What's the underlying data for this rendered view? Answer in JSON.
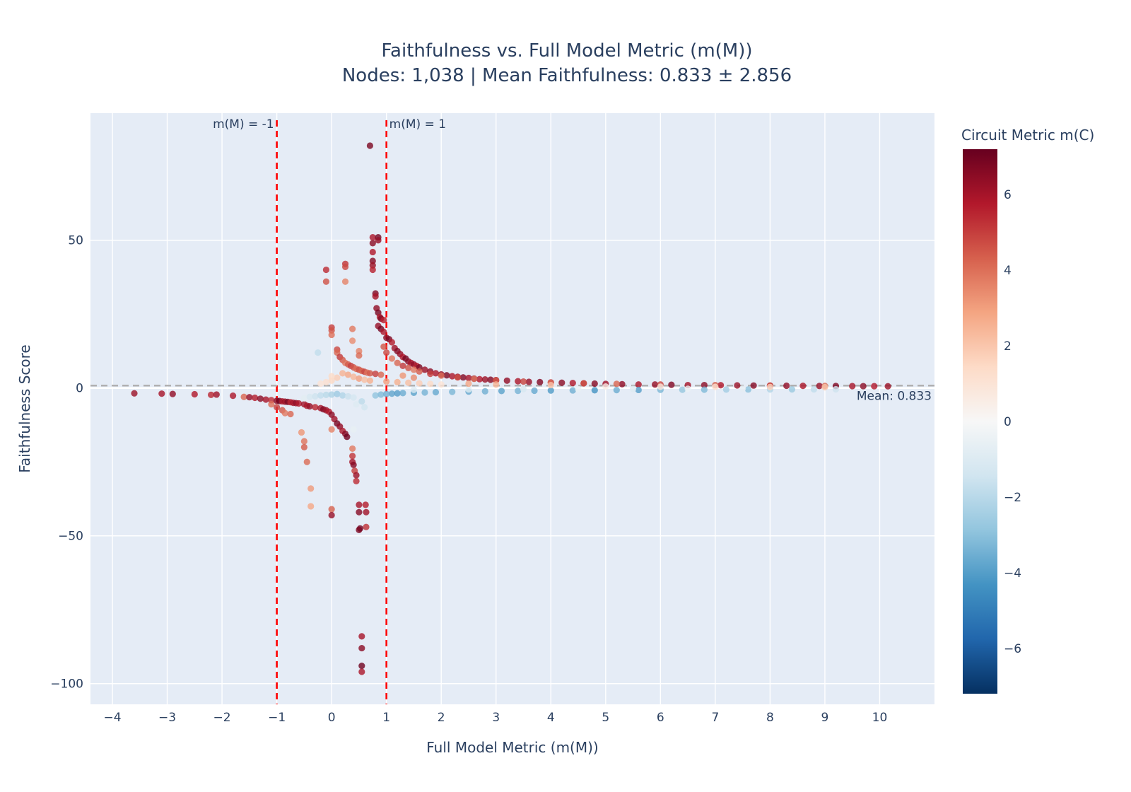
{
  "chart_data": {
    "type": "scatter",
    "title": "Faithfulness vs. Full Model Metric (m(M))",
    "subtitle": "Nodes: 1,038 | Mean Faithfulness: 0.833 ± 2.856",
    "xlabel": "Full Model Metric (m(M))",
    "ylabel": "Faithfulness Score",
    "xlim": [
      -4.4,
      11
    ],
    "ylim": [
      -107,
      93
    ],
    "x_ticks": [
      -4,
      -3,
      -2,
      -1,
      0,
      1,
      2,
      3,
      4,
      5,
      6,
      7,
      8,
      9,
      10
    ],
    "x_tick_labels": [
      "−4",
      "−3",
      "−2",
      "−1",
      "0",
      "1",
      "2",
      "3",
      "4",
      "5",
      "6",
      "7",
      "8",
      "9",
      "10"
    ],
    "y_ticks": [
      -100,
      -50,
      0,
      50
    ],
    "y_tick_labels": [
      "−100",
      "−50",
      "0",
      "50"
    ],
    "grid": true,
    "colorbar": {
      "title": "Circuit Metric m(C)",
      "range": [
        -7.2,
        7.2
      ],
      "ticks": [
        -6,
        -4,
        -2,
        0,
        2,
        4,
        6
      ],
      "tick_labels": [
        "−6",
        "−4",
        "−2",
        "0",
        "2",
        "4",
        "6"
      ],
      "colorscale": "RdBu reversed"
    },
    "reference_lines": [
      {
        "orientation": "vertical",
        "x": -1,
        "label": "m(M) = -1",
        "color": "#ff0000",
        "style": "dashed"
      },
      {
        "orientation": "vertical",
        "x": 1,
        "label": "m(M) = 1",
        "color": "#ff0000",
        "style": "dashed"
      },
      {
        "orientation": "horizontal",
        "y": 0.833,
        "label": "Mean: 0.833",
        "color": "#b0b0b0",
        "style": "dashed"
      }
    ],
    "points": [
      [
        -3.6,
        -1.8,
        6.2
      ],
      [
        -3.1,
        -1.9,
        6.0
      ],
      [
        -2.9,
        -2.0,
        6.4
      ],
      [
        -2.5,
        -2.1,
        5.8
      ],
      [
        -2.2,
        -2.3,
        5.5
      ],
      [
        -2.1,
        -2.2,
        6.1
      ],
      [
        -1.8,
        -2.6,
        5.9
      ],
      [
        -1.6,
        -3.0,
        4.2
      ],
      [
        -1.5,
        -3.1,
        6.3
      ],
      [
        -1.4,
        -3.3,
        5.7
      ],
      [
        -1.3,
        -3.6,
        6.5
      ],
      [
        -1.2,
        -3.9,
        6.0
      ],
      [
        -1.1,
        -4.1,
        5.4
      ],
      [
        -1.0,
        -4.3,
        6.6
      ],
      [
        -0.95,
        -4.4,
        7.0
      ],
      [
        -0.9,
        -4.5,
        5.9
      ],
      [
        -0.85,
        -4.6,
        6.2
      ],
      [
        -0.8,
        -4.7,
        6.8
      ],
      [
        -0.75,
        -4.8,
        5.6
      ],
      [
        -0.7,
        -5.0,
        6.0
      ],
      [
        -0.65,
        -5.1,
        6.4
      ],
      [
        -0.6,
        -5.2,
        5.8
      ],
      [
        -1.1,
        -5.5,
        4.0
      ],
      [
        -1.0,
        -6.5,
        5.0
      ],
      [
        -0.9,
        -7.5,
        4.5
      ],
      [
        -0.85,
        -8.5,
        3.8
      ],
      [
        -0.75,
        -8.8,
        4.2
      ],
      [
        -0.5,
        -5.5,
        6.1
      ],
      [
        -0.45,
        -6.0,
        5.9
      ],
      [
        -0.4,
        -6.2,
        6.3
      ],
      [
        -0.3,
        -6.5,
        5.5
      ],
      [
        -0.2,
        -6.8,
        6.0
      ],
      [
        -0.15,
        -7.2,
        6.7
      ],
      [
        -0.1,
        -7.5,
        6.2
      ],
      [
        -0.05,
        -8.0,
        5.8
      ],
      [
        0.0,
        -9.0,
        6.5
      ],
      [
        0.05,
        -10.5,
        6.1
      ],
      [
        0.1,
        -12.0,
        6.9
      ],
      [
        0.15,
        -13.0,
        6.4
      ],
      [
        0.2,
        -14.5,
        5.9
      ],
      [
        0.25,
        -15.5,
        6.6
      ],
      [
        0.28,
        -16.5,
        7.0
      ],
      [
        -0.55,
        -15.0,
        3.2
      ],
      [
        -0.5,
        -18.0,
        3.9
      ],
      [
        -0.5,
        -20.0,
        4.4
      ],
      [
        -0.45,
        -25.0,
        4.1
      ],
      [
        -0.38,
        -34.0,
        3.1
      ],
      [
        -0.38,
        -40.0,
        2.8
      ],
      [
        0.0,
        -14.0,
        3.6
      ],
      [
        0.0,
        -41.0,
        4.3
      ],
      [
        0.0,
        -43.0,
        6.3
      ],
      [
        0.38,
        -20.5,
        3.8
      ],
      [
        0.38,
        -23.0,
        5.2
      ],
      [
        0.38,
        -25.0,
        6.0
      ],
      [
        0.4,
        -26.0,
        6.6
      ],
      [
        0.42,
        -28.0,
        5.0
      ],
      [
        0.45,
        -29.5,
        6.2
      ],
      [
        0.45,
        -31.5,
        5.4
      ],
      [
        0.5,
        -39.5,
        6.0
      ],
      [
        0.5,
        -42.0,
        6.6
      ],
      [
        0.52,
        -47.5,
        7.0
      ],
      [
        0.5,
        -48.0,
        6.8
      ],
      [
        0.62,
        -39.5,
        5.7
      ],
      [
        0.63,
        -42.0,
        6.1
      ],
      [
        0.63,
        -47.0,
        5.3
      ],
      [
        0.55,
        -84.0,
        6.0
      ],
      [
        0.55,
        -88.0,
        6.5
      ],
      [
        0.55,
        -94.0,
        7.0
      ],
      [
        0.55,
        -96.0,
        5.9
      ],
      [
        0.7,
        82.0,
        6.8
      ],
      [
        0.75,
        51.0,
        5.9
      ],
      [
        0.85,
        51.0,
        6.9
      ],
      [
        0.85,
        50.0,
        6.3
      ],
      [
        0.75,
        49.0,
        6.5
      ],
      [
        0.75,
        46.0,
        5.8
      ],
      [
        0.75,
        43.0,
        6.6
      ],
      [
        0.75,
        41.5,
        6.2
      ],
      [
        0.75,
        40.0,
        5.6
      ],
      [
        0.8,
        32.0,
        6.7
      ],
      [
        0.8,
        31.0,
        6.0
      ],
      [
        0.82,
        27.0,
        6.4
      ],
      [
        0.85,
        25.5,
        6.9
      ],
      [
        0.88,
        24.0,
        5.8
      ],
      [
        0.9,
        23.5,
        6.7
      ],
      [
        0.95,
        23.0,
        5.6
      ],
      [
        0.85,
        21.0,
        6.3
      ],
      [
        0.9,
        20.0,
        6.9
      ],
      [
        0.95,
        19.0,
        5.9
      ],
      [
        1.0,
        17.0,
        6.5
      ],
      [
        1.05,
        16.5,
        6.8
      ],
      [
        1.1,
        15.5,
        5.7
      ],
      [
        1.15,
        13.5,
        6.1
      ],
      [
        1.2,
        12.5,
        6.7
      ],
      [
        1.25,
        11.5,
        6.3
      ],
      [
        1.3,
        10.5,
        5.8
      ],
      [
        1.35,
        10.0,
        6.9
      ],
      [
        1.4,
        9.0,
        6.5
      ],
      [
        1.45,
        8.5,
        6.0
      ],
      [
        1.5,
        8.0,
        6.4
      ],
      [
        1.55,
        7.5,
        5.7
      ],
      [
        1.6,
        7.0,
        6.8
      ],
      [
        1.7,
        6.2,
        6.2
      ],
      [
        1.8,
        5.6,
        6.5
      ],
      [
        1.9,
        5.0,
        5.9
      ],
      [
        2.0,
        4.6,
        6.4
      ],
      [
        2.1,
        4.3,
        6.8
      ],
      [
        2.2,
        4.0,
        5.9
      ],
      [
        2.3,
        3.8,
        6.3
      ],
      [
        2.4,
        3.6,
        6.7
      ],
      [
        2.5,
        3.4,
        6.0
      ],
      [
        2.6,
        3.2,
        6.5
      ],
      [
        2.7,
        3.0,
        5.8
      ],
      [
        2.8,
        2.9,
        6.2
      ],
      [
        2.9,
        2.8,
        6.6
      ],
      [
        3.0,
        2.7,
        6.1
      ],
      [
        3.2,
        2.5,
        6.4
      ],
      [
        3.4,
        2.3,
        5.9
      ],
      [
        3.6,
        2.1,
        6.3
      ],
      [
        3.8,
        2.0,
        6.7
      ],
      [
        4.0,
        1.9,
        6.0
      ],
      [
        4.2,
        1.8,
        6.5
      ],
      [
        4.4,
        1.7,
        5.8
      ],
      [
        4.6,
        1.6,
        6.2
      ],
      [
        4.8,
        1.5,
        6.6
      ],
      [
        5.0,
        1.4,
        6.1
      ],
      [
        5.3,
        1.3,
        6.4
      ],
      [
        5.6,
        1.2,
        5.9
      ],
      [
        5.9,
        1.2,
        6.3
      ],
      [
        6.2,
        1.1,
        6.7
      ],
      [
        6.5,
        1.0,
        6.0
      ],
      [
        6.8,
        1.0,
        6.5
      ],
      [
        7.1,
        0.95,
        5.8
      ],
      [
        7.4,
        0.9,
        6.2
      ],
      [
        7.7,
        0.85,
        6.6
      ],
      [
        8.0,
        0.8,
        6.1
      ],
      [
        8.3,
        0.78,
        6.4
      ],
      [
        8.6,
        0.75,
        5.9
      ],
      [
        8.9,
        0.7,
        6.3
      ],
      [
        9.2,
        0.68,
        6.7
      ],
      [
        9.5,
        0.66,
        6.0
      ],
      [
        9.7,
        0.64,
        6.5
      ],
      [
        9.9,
        0.62,
        5.8
      ],
      [
        10.15,
        0.6,
        6.2
      ],
      [
        0.95,
        14.0,
        4.5
      ],
      [
        1.0,
        12.0,
        4.8
      ],
      [
        1.1,
        10.0,
        3.9
      ],
      [
        1.2,
        8.5,
        4.2
      ],
      [
        1.3,
        7.5,
        5.1
      ],
      [
        1.4,
        6.8,
        4.6
      ],
      [
        1.5,
        6.2,
        3.8
      ],
      [
        1.6,
        5.6,
        4.4
      ],
      [
        1.8,
        4.8,
        5.0
      ],
      [
        2.0,
        4.2,
        4.1
      ],
      [
        2.3,
        3.6,
        4.7
      ],
      [
        2.6,
        3.1,
        3.9
      ],
      [
        3.0,
        2.6,
        4.5
      ],
      [
        3.5,
        2.2,
        4.9
      ],
      [
        4.0,
        1.8,
        4.0
      ],
      [
        4.6,
        1.6,
        4.6
      ],
      [
        5.2,
        1.4,
        4.2
      ],
      [
        6.0,
        1.2,
        4.8
      ],
      [
        7.0,
        1.0,
        4.3
      ],
      [
        8.0,
        0.85,
        4.7
      ],
      [
        9.0,
        0.72,
        4.1
      ],
      [
        0.0,
        20.5,
        5.0
      ],
      [
        0.0,
        19.5,
        4.6
      ],
      [
        0.0,
        18.0,
        4.0
      ],
      [
        0.1,
        13.0,
        4.8
      ],
      [
        0.1,
        12.0,
        4.2
      ],
      [
        0.15,
        10.5,
        5.1
      ],
      [
        0.2,
        9.5,
        4.5
      ],
      [
        0.25,
        8.5,
        3.9
      ],
      [
        0.3,
        8.0,
        4.4
      ],
      [
        0.35,
        7.5,
        5.0
      ],
      [
        0.4,
        7.0,
        4.6
      ],
      [
        0.45,
        6.5,
        4.1
      ],
      [
        0.5,
        6.2,
        4.7
      ],
      [
        0.55,
        5.8,
        4.3
      ],
      [
        0.6,
        5.5,
        4.9
      ],
      [
        0.65,
        5.2,
        4.0
      ],
      [
        0.7,
        5.0,
        4.5
      ],
      [
        0.8,
        4.8,
        5.0
      ],
      [
        0.9,
        4.5,
        4.2
      ],
      [
        0.38,
        20.0,
        3.8
      ],
      [
        0.38,
        16.0,
        3.4
      ],
      [
        0.5,
        12.5,
        3.6
      ],
      [
        0.5,
        11.0,
        4.1
      ],
      [
        0.25,
        42.0,
        5.2
      ],
      [
        0.25,
        41.0,
        4.8
      ],
      [
        0.25,
        36.0,
        3.6
      ],
      [
        -0.1,
        40.0,
        5.4
      ],
      [
        -0.1,
        36.0,
        4.6
      ],
      [
        0.3,
        4.5,
        2.8
      ],
      [
        0.4,
        3.8,
        2.4
      ],
      [
        0.5,
        3.2,
        3.0
      ],
      [
        0.6,
        2.8,
        2.2
      ],
      [
        0.7,
        2.5,
        2.6
      ],
      [
        0.2,
        5.0,
        2.5
      ],
      [
        0.1,
        3.5,
        1.8
      ],
      [
        0.0,
        2.5,
        1.5
      ],
      [
        -0.1,
        2.0,
        1.2
      ],
      [
        -0.2,
        1.5,
        1.0
      ],
      [
        -0.25,
        12.0,
        -1.8
      ],
      [
        0.0,
        4.0,
        1.4
      ],
      [
        1.0,
        2.2,
        3.0
      ],
      [
        1.2,
        2.0,
        2.6
      ],
      [
        1.4,
        1.8,
        2.2
      ],
      [
        1.6,
        1.6,
        1.8
      ],
      [
        1.8,
        1.4,
        1.4
      ],
      [
        2.0,
        1.2,
        1.0
      ],
      [
        -0.5,
        -3.5,
        -0.8
      ],
      [
        -0.4,
        -3.0,
        -1.2
      ],
      [
        -0.3,
        -2.8,
        -1.5
      ],
      [
        -0.2,
        -2.5,
        -1.8
      ],
      [
        -0.1,
        -2.3,
        -2.0
      ],
      [
        0.0,
        -2.2,
        -2.3
      ],
      [
        0.1,
        -2.0,
        -2.6
      ],
      [
        0.2,
        -2.5,
        -2.2
      ],
      [
        0.3,
        -2.8,
        -1.6
      ],
      [
        0.4,
        -3.2,
        -1.3
      ],
      [
        0.45,
        -5.5,
        -1.0
      ],
      [
        0.6,
        -6.5,
        -1.4
      ],
      [
        0.55,
        -4.5,
        -1.9
      ],
      [
        0.4,
        -14.0,
        -0.6
      ],
      [
        0.8,
        -2.5,
        -2.9
      ],
      [
        0.9,
        -2.2,
        -3.2
      ],
      [
        1.0,
        -2.0,
        -3.5
      ],
      [
        1.1,
        -1.9,
        -3.8
      ],
      [
        1.2,
        -1.8,
        -4.0
      ],
      [
        1.3,
        -1.7,
        -3.6
      ],
      [
        1.5,
        -1.6,
        -3.9
      ],
      [
        1.7,
        -1.5,
        -3.4
      ],
      [
        1.9,
        -1.4,
        -3.7
      ],
      [
        2.2,
        -1.3,
        -3.3
      ],
      [
        2.5,
        -1.2,
        -3.8
      ],
      [
        2.8,
        -1.1,
        -3.5
      ],
      [
        3.1,
        -1.0,
        -3.9
      ],
      [
        3.4,
        -0.95,
        -3.4
      ],
      [
        3.7,
        -0.9,
        -3.7
      ],
      [
        4.0,
        -0.85,
        -4.1
      ],
      [
        4.4,
        -0.8,
        -3.5
      ],
      [
        4.8,
        -0.75,
        -4.3
      ],
      [
        5.2,
        -0.7,
        -3.6
      ],
      [
        5.6,
        -0.65,
        -4.0
      ],
      [
        6.0,
        -0.6,
        -3.3
      ],
      [
        6.4,
        -0.58,
        -2.8
      ],
      [
        6.8,
        -0.55,
        -3.2
      ],
      [
        7.2,
        -0.52,
        -2.5
      ],
      [
        7.6,
        -0.5,
        -3.0
      ],
      [
        8.0,
        -0.48,
        -2.2
      ],
      [
        8.4,
        -0.46,
        -2.7
      ],
      [
        8.8,
        -0.44,
        -1.8
      ],
      [
        9.2,
        -0.42,
        -1.5
      ],
      [
        1.5,
        -0.6,
        -1.0
      ],
      [
        2.5,
        -0.5,
        -0.8
      ],
      [
        3.5,
        -0.4,
        -1.2
      ],
      [
        4.5,
        -0.35,
        -0.6
      ],
      [
        5.5,
        -0.3,
        -1.0
      ],
      [
        6.5,
        -0.25,
        -0.5
      ],
      [
        7.5,
        -0.2,
        -0.7
      ],
      [
        5.0,
        0.5,
        0.5
      ],
      [
        6.0,
        0.45,
        0.8
      ],
      [
        7.0,
        0.4,
        1.2
      ],
      [
        8.0,
        0.35,
        1.6
      ],
      [
        9.0,
        0.3,
        2.0
      ],
      [
        3.0,
        1.2,
        2.4
      ],
      [
        4.0,
        1.0,
        2.0
      ],
      [
        2.5,
        1.5,
        2.8
      ],
      [
        1.5,
        3.5,
        3.4
      ],
      [
        1.3,
        4.2,
        3.2
      ]
    ]
  }
}
